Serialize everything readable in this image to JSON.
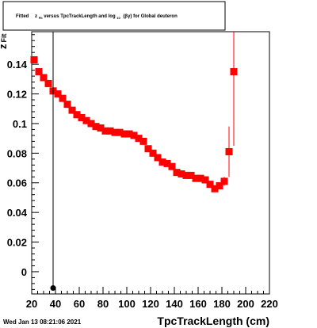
{
  "title_box": {
    "prefix": "Fitted",
    "var": "z",
    "var_sub": "Fit",
    "middle": " versus TpcTrackLength and log",
    "log_sub": "10",
    "suffix": "(βγ) for Global deuteron"
  },
  "timestamp": "Wed Jan 13 08:21:06 2021",
  "colors": {
    "marker": "#ff0000",
    "frame": "#000000",
    "background": "#ffffff"
  },
  "chart_data": {
    "type": "scatter",
    "title": "Fitted z_Fit versus TpcTrackLength and log_10(βγ) for Global deuteron",
    "xlabel": "TpcTrackLength (cm)",
    "ylabel": "z",
    "ylabel_sub": "Fit",
    "xlim": [
      20,
      220
    ],
    "ylim": [
      -0.015,
      0.162
    ],
    "grid": false,
    "x_ticks": [
      20,
      40,
      60,
      80,
      100,
      120,
      140,
      160,
      180,
      200,
      220
    ],
    "y_ticks": [
      0,
      0.02,
      0.04,
      0.06,
      0.08,
      0.1,
      0.12,
      0.14
    ],
    "x_tick_labels": [
      "20",
      "40",
      "60",
      "80",
      "100",
      "120",
      "140",
      "160",
      "180",
      "200",
      "220"
    ],
    "y_tick_labels": [
      "0",
      "0.02",
      "0.04",
      "0.06",
      "0.08",
      "0.1",
      "0.12",
      "0.14"
    ],
    "series": [
      {
        "marker": "square",
        "color": "#ff0000",
        "x": [
          22,
          26,
          30,
          34,
          38,
          42,
          46,
          50,
          54,
          58,
          62,
          66,
          70,
          74,
          78,
          82,
          86,
          90,
          94,
          98,
          102,
          106,
          110,
          114,
          118,
          122,
          126,
          130,
          134,
          138,
          142,
          146,
          150,
          154,
          158,
          162,
          166,
          170,
          174,
          178,
          182,
          186,
          190
        ],
        "y": [
          0.143,
          0.135,
          0.131,
          0.127,
          0.122,
          0.12,
          0.117,
          0.113,
          0.109,
          0.106,
          0.104,
          0.102,
          0.1,
          0.098,
          0.097,
          0.095,
          0.095,
          0.094,
          0.094,
          0.093,
          0.093,
          0.092,
          0.09,
          0.088,
          0.083,
          0.08,
          0.077,
          0.074,
          0.073,
          0.071,
          0.067,
          0.066,
          0.065,
          0.065,
          0.063,
          0.063,
          0.062,
          0.059,
          0.056,
          0.058,
          0.061,
          0.081,
          0.135
        ],
        "err": [
          0,
          0,
          0,
          0,
          0,
          0,
          0,
          0,
          0,
          0,
          0,
          0,
          0,
          0,
          0,
          0,
          0,
          0,
          0,
          0,
          0,
          0,
          0,
          0,
          0,
          0,
          0,
          0,
          0,
          0,
          0,
          0,
          0,
          0,
          0,
          0,
          0,
          0,
          0,
          0,
          0.003,
          0.017,
          0.05
        ]
      },
      {
        "marker": "circle",
        "color": "#000000",
        "x": [
          38
        ],
        "y": [
          -0.011
        ],
        "vline": true
      }
    ]
  }
}
